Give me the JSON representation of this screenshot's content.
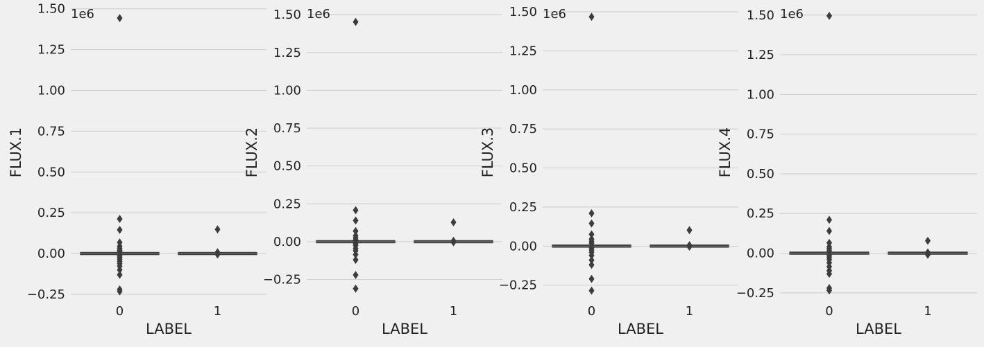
{
  "chart_data": [
    {
      "type": "box",
      "xlabel": "LABEL",
      "ylabel": "FLUX.1",
      "offset_text": "1e6",
      "categories": [
        "0",
        "1"
      ],
      "yticks": [
        -0.25,
        0.0,
        0.25,
        0.5,
        0.75,
        1.0,
        1.25,
        1.5
      ],
      "ytick_labels": [
        "−0.25",
        "0.00",
        "0.25",
        "0.50",
        "0.75",
        "1.00",
        "1.25",
        "1.50"
      ],
      "ylim": [
        -0.28,
        1.52
      ],
      "grid": true,
      "boxes": [
        {
          "category": "0",
          "q1": -0.004,
          "q3": 0.004,
          "median": 0.0,
          "outliers": [
            1.443,
            0.212,
            0.145,
            0.068,
            0.045,
            0.032,
            0.02,
            0.012,
            -0.012,
            -0.022,
            -0.035,
            -0.048,
            -0.062,
            -0.078,
            -0.1,
            -0.13,
            -0.22,
            -0.232
          ]
        },
        {
          "category": "1",
          "q1": -0.003,
          "q3": 0.003,
          "median": 0.0,
          "outliers": [
            0.148,
            0.008,
            -0.006
          ]
        }
      ]
    },
    {
      "type": "box",
      "xlabel": "LABEL",
      "ylabel": "FLUX.2",
      "offset_text": "1e6",
      "categories": [
        "0",
        "1"
      ],
      "yticks": [
        -0.25,
        0.0,
        0.25,
        0.5,
        0.75,
        1.0,
        1.25,
        1.5
      ],
      "ytick_labels": [
        "−0.25",
        "0.00",
        "0.25",
        "0.50",
        "0.75",
        "1.00",
        "1.25",
        "1.50"
      ],
      "ylim": [
        -0.38,
        1.56
      ],
      "grid": true,
      "boxes": [
        {
          "category": "0",
          "q1": -0.004,
          "q3": 0.004,
          "median": 0.0,
          "outliers": [
            1.452,
            0.208,
            0.14,
            0.07,
            0.04,
            0.025,
            0.012,
            -0.012,
            -0.025,
            -0.045,
            -0.06,
            -0.085,
            -0.12,
            -0.22,
            -0.31
          ]
        },
        {
          "category": "1",
          "q1": -0.003,
          "q3": 0.003,
          "median": 0.0,
          "outliers": [
            0.128,
            0.006,
            -0.004
          ]
        }
      ]
    },
    {
      "type": "box",
      "xlabel": "LABEL",
      "ylabel": "FLUX.3",
      "offset_text": "1e6",
      "categories": [
        "0",
        "1"
      ],
      "yticks": [
        -0.25,
        0.0,
        0.25,
        0.5,
        0.75,
        1.0,
        1.25,
        1.5
      ],
      "ytick_labels": [
        "−0.25",
        "0.00",
        "0.25",
        "0.50",
        "0.75",
        "1.00",
        "1.25",
        "1.50"
      ],
      "ylim": [
        -0.34,
        1.54
      ],
      "grid": true,
      "boxes": [
        {
          "category": "0",
          "q1": -0.004,
          "q3": 0.004,
          "median": 0.0,
          "outliers": [
            1.468,
            0.21,
            0.145,
            0.075,
            0.045,
            0.03,
            0.018,
            -0.012,
            -0.025,
            -0.04,
            -0.06,
            -0.09,
            -0.12,
            -0.21,
            -0.285
          ]
        },
        {
          "category": "1",
          "q1": -0.003,
          "q3": 0.003,
          "median": 0.0,
          "outliers": [
            0.102,
            0.006,
            -0.004
          ]
        }
      ]
    },
    {
      "type": "box",
      "xlabel": "LABEL",
      "ylabel": "FLUX.4",
      "offset_text": "1e6",
      "categories": [
        "0",
        "1"
      ],
      "yticks": [
        -0.25,
        0.0,
        0.25,
        0.5,
        0.75,
        1.0,
        1.25,
        1.5
      ],
      "ytick_labels": [
        "−0.25",
        "0.00",
        "0.25",
        "0.50",
        "0.75",
        "1.00",
        "1.25",
        "1.50"
      ],
      "ylim": [
        -0.29,
        1.56
      ],
      "grid": true,
      "boxes": [
        {
          "category": "0",
          "q1": -0.004,
          "q3": 0.004,
          "median": 0.0,
          "outliers": [
            1.495,
            0.21,
            0.14,
            0.065,
            0.04,
            0.028,
            0.015,
            -0.012,
            -0.025,
            -0.04,
            -0.06,
            -0.085,
            -0.11,
            -0.13,
            -0.22,
            -0.235
          ]
        },
        {
          "category": "1",
          "q1": -0.003,
          "q3": 0.003,
          "median": 0.0,
          "outliers": [
            0.078,
            0.005,
            -0.01
          ]
        }
      ]
    }
  ],
  "colors": {
    "background": "#f0f0f0",
    "grid": "#cbcbcb",
    "box_fill": "#3d3d3d",
    "box_edge": "#3d3d3d",
    "text": "#222222"
  }
}
